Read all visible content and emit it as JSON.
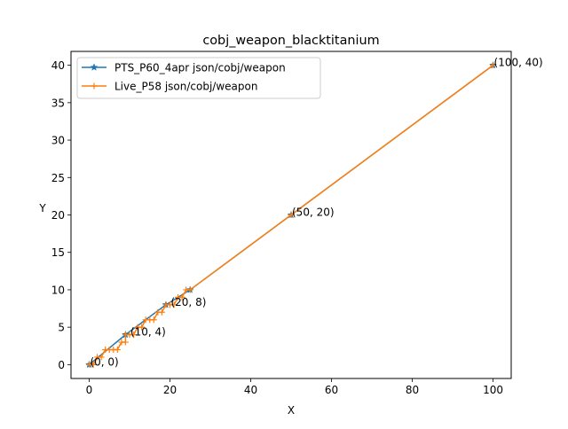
{
  "chart_data": {
    "type": "line",
    "title": "cobj_weapon_blacktitanium",
    "xlabel": "X",
    "ylabel": "Y",
    "xlim": [
      -4.5,
      104.5
    ],
    "ylim": [
      -1.85,
      41.85
    ],
    "xticks": [
      0,
      20,
      40,
      60,
      80,
      100
    ],
    "yticks": [
      0,
      5,
      10,
      15,
      20,
      25,
      30,
      35,
      40
    ],
    "legend_position": "top-left",
    "series": [
      {
        "name": "PTS_P60_4apr json/cobj/weapon",
        "color": "#1f77b4",
        "marker": "star",
        "points": [
          [
            0,
            0
          ],
          [
            9,
            4
          ],
          [
            19,
            8
          ],
          [
            25,
            10
          ],
          [
            50,
            20
          ],
          [
            100,
            40
          ]
        ]
      },
      {
        "name": "Live_P58 json/cobj/weapon",
        "color": "#ff7f0e",
        "marker": "plus",
        "points": [
          [
            0,
            0
          ],
          [
            1,
            0
          ],
          [
            2,
            1
          ],
          [
            3,
            1
          ],
          [
            4,
            2
          ],
          [
            5,
            2
          ],
          [
            6,
            2
          ],
          [
            7,
            2
          ],
          [
            8,
            3
          ],
          [
            9,
            3
          ],
          [
            9,
            4
          ],
          [
            10,
            4
          ],
          [
            11,
            4
          ],
          [
            12,
            5
          ],
          [
            13,
            5
          ],
          [
            14,
            6
          ],
          [
            15,
            6
          ],
          [
            16,
            6
          ],
          [
            17,
            7
          ],
          [
            18,
            7
          ],
          [
            19,
            8
          ],
          [
            20,
            8
          ],
          [
            21,
            8
          ],
          [
            22,
            9
          ],
          [
            23,
            9
          ],
          [
            24,
            10
          ],
          [
            25,
            10
          ],
          [
            50,
            20
          ],
          [
            100,
            40
          ]
        ]
      }
    ],
    "annotations": [
      {
        "text": "(0, 0)",
        "x": 0,
        "y": 0
      },
      {
        "text": "(10, 4)",
        "x": 10,
        "y": 4
      },
      {
        "text": "(20, 8)",
        "x": 20,
        "y": 8
      },
      {
        "text": "(50, 20)",
        "x": 50,
        "y": 20
      },
      {
        "text": "(100, 40)",
        "x": 100,
        "y": 40
      }
    ]
  }
}
